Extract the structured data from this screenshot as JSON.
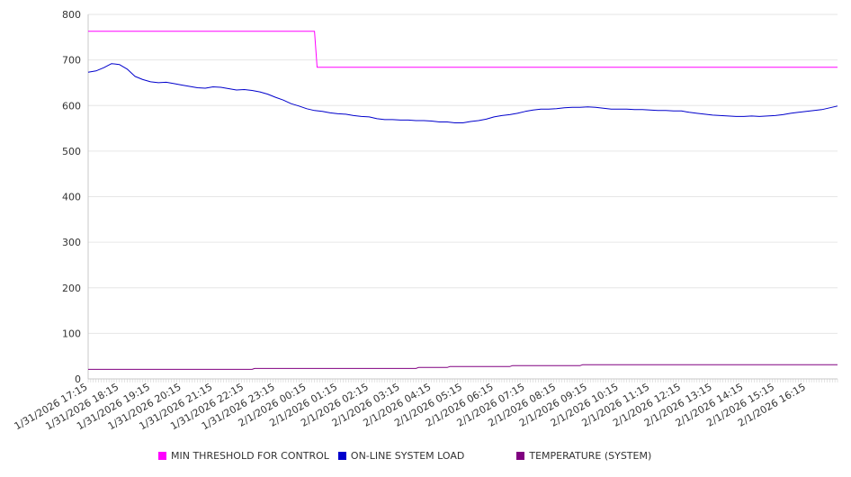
{
  "chart_data": {
    "type": "line",
    "title": "",
    "xlabel": "",
    "ylabel": "",
    "ylim": [
      0,
      800
    ],
    "yticks": [
      0,
      100,
      200,
      300,
      400,
      500,
      600,
      700,
      800
    ],
    "grid": true,
    "legend_position": "bottom",
    "x_range": [
      "1/31/2026 17:15",
      "2/1/2026 17:15"
    ],
    "x_tick_labels": [
      "1/31/2026 17:15",
      "1/31/2026 18:15",
      "1/31/2026 19:15",
      "1/31/2026 20:15",
      "1/31/2026 21:15",
      "1/31/2026 22:15",
      "1/31/2026 23:15",
      "2/1/2026 00:15",
      "2/1/2026 01:15",
      "2/1/2026 02:15",
      "2/1/2026 03:15",
      "2/1/2026 04:15",
      "2/1/2026 05:15",
      "2/1/2026 06:15",
      "2/1/2026 07:15",
      "2/1/2026 08:15",
      "2/1/2026 09:15",
      "2/1/2026 10:15",
      "2/1/2026 11:15",
      "2/1/2026 12:15",
      "2/1/2026 13:15",
      "2/1/2026 14:15",
      "2/1/2026 15:15",
      "2/1/2026 16:15"
    ],
    "series": [
      {
        "name": "MIN THRESHOLD FOR CONTROL",
        "color": "#ff00ff",
        "points": [
          [
            "1/31/2026 17:15",
            763
          ],
          [
            "2/1/2026 00:30",
            763
          ],
          [
            "2/1/2026 00:35",
            684
          ],
          [
            "2/1/2026 17:15",
            684
          ]
        ]
      },
      {
        "name": "ON-LINE SYSTEM LOAD",
        "color": "#0000cc",
        "points": [
          [
            "1/31/2026 17:15",
            673
          ],
          [
            "1/31/2026 17:30",
            676
          ],
          [
            "1/31/2026 17:45",
            683
          ],
          [
            "1/31/2026 18:00",
            692
          ],
          [
            "1/31/2026 18:15",
            690
          ],
          [
            "1/31/2026 18:30",
            680
          ],
          [
            "1/31/2026 18:45",
            664
          ],
          [
            "1/31/2026 19:00",
            657
          ],
          [
            "1/31/2026 19:15",
            652
          ],
          [
            "1/31/2026 19:30",
            650
          ],
          [
            "1/31/2026 19:45",
            651
          ],
          [
            "1/31/2026 20:00",
            648
          ],
          [
            "1/31/2026 20:15",
            645
          ],
          [
            "1/31/2026 20:30",
            642
          ],
          [
            "1/31/2026 20:45",
            639
          ],
          [
            "1/31/2026 21:00",
            638
          ],
          [
            "1/31/2026 21:15",
            641
          ],
          [
            "1/31/2026 21:30",
            640
          ],
          [
            "1/31/2026 21:45",
            637
          ],
          [
            "1/31/2026 22:00",
            634
          ],
          [
            "1/31/2026 22:15",
            635
          ],
          [
            "1/31/2026 22:30",
            633
          ],
          [
            "1/31/2026 22:45",
            630
          ],
          [
            "1/31/2026 23:00",
            625
          ],
          [
            "1/31/2026 23:15",
            618
          ],
          [
            "1/31/2026 23:30",
            612
          ],
          [
            "1/31/2026 23:45",
            604
          ],
          [
            "2/1/2026 00:00",
            599
          ],
          [
            "2/1/2026 00:15",
            593
          ],
          [
            "2/1/2026 00:30",
            589
          ],
          [
            "2/1/2026 00:45",
            587
          ],
          [
            "2/1/2026 01:00",
            584
          ],
          [
            "2/1/2026 01:15",
            582
          ],
          [
            "2/1/2026 01:30",
            581
          ],
          [
            "2/1/2026 01:45",
            578
          ],
          [
            "2/1/2026 02:00",
            576
          ],
          [
            "2/1/2026 02:15",
            575
          ],
          [
            "2/1/2026 02:30",
            571
          ],
          [
            "2/1/2026 02:45",
            569
          ],
          [
            "2/1/2026 03:00",
            569
          ],
          [
            "2/1/2026 03:15",
            568
          ],
          [
            "2/1/2026 03:30",
            568
          ],
          [
            "2/1/2026 03:45",
            567
          ],
          [
            "2/1/2026 04:00",
            567
          ],
          [
            "2/1/2026 04:15",
            566
          ],
          [
            "2/1/2026 04:30",
            564
          ],
          [
            "2/1/2026 04:45",
            564
          ],
          [
            "2/1/2026 05:00",
            562
          ],
          [
            "2/1/2026 05:15",
            562
          ],
          [
            "2/1/2026 05:30",
            565
          ],
          [
            "2/1/2026 05:45",
            567
          ],
          [
            "2/1/2026 06:00",
            570
          ],
          [
            "2/1/2026 06:15",
            575
          ],
          [
            "2/1/2026 06:30",
            578
          ],
          [
            "2/1/2026 06:45",
            580
          ],
          [
            "2/1/2026 07:00",
            583
          ],
          [
            "2/1/2026 07:15",
            587
          ],
          [
            "2/1/2026 07:30",
            590
          ],
          [
            "2/1/2026 07:45",
            592
          ],
          [
            "2/1/2026 08:00",
            592
          ],
          [
            "2/1/2026 08:15",
            593
          ],
          [
            "2/1/2026 08:30",
            595
          ],
          [
            "2/1/2026 08:45",
            596
          ],
          [
            "2/1/2026 09:00",
            596
          ],
          [
            "2/1/2026 09:15",
            597
          ],
          [
            "2/1/2026 09:30",
            596
          ],
          [
            "2/1/2026 09:45",
            594
          ],
          [
            "2/1/2026 10:00",
            592
          ],
          [
            "2/1/2026 10:15",
            592
          ],
          [
            "2/1/2026 10:30",
            592
          ],
          [
            "2/1/2026 10:45",
            591
          ],
          [
            "2/1/2026 11:00",
            591
          ],
          [
            "2/1/2026 11:15",
            590
          ],
          [
            "2/1/2026 11:30",
            589
          ],
          [
            "2/1/2026 11:45",
            589
          ],
          [
            "2/1/2026 12:00",
            588
          ],
          [
            "2/1/2026 12:15",
            588
          ],
          [
            "2/1/2026 12:30",
            585
          ],
          [
            "2/1/2026 12:45",
            583
          ],
          [
            "2/1/2026 13:00",
            581
          ],
          [
            "2/1/2026 13:15",
            579
          ],
          [
            "2/1/2026 13:30",
            578
          ],
          [
            "2/1/2026 13:45",
            577
          ],
          [
            "2/1/2026 14:00",
            576
          ],
          [
            "2/1/2026 14:15",
            576
          ],
          [
            "2/1/2026 14:30",
            577
          ],
          [
            "2/1/2026 14:45",
            576
          ],
          [
            "2/1/2026 15:00",
            577
          ],
          [
            "2/1/2026 15:15",
            578
          ],
          [
            "2/1/2026 15:30",
            580
          ],
          [
            "2/1/2026 15:45",
            583
          ],
          [
            "2/1/2026 16:00",
            585
          ],
          [
            "2/1/2026 16:15",
            587
          ],
          [
            "2/1/2026 16:30",
            589
          ],
          [
            "2/1/2026 16:45",
            591
          ],
          [
            "2/1/2026 17:00",
            595
          ],
          [
            "2/1/2026 17:15",
            599
          ]
        ]
      },
      {
        "name": "TEMPERATURE (SYSTEM)",
        "color": "#800080",
        "points": [
          [
            "1/31/2026 17:15",
            21
          ],
          [
            "1/31/2026 22:30",
            21
          ],
          [
            "1/31/2026 22:35",
            23
          ],
          [
            "2/1/2026 03:45",
            23
          ],
          [
            "2/1/2026 03:50",
            25
          ],
          [
            "2/1/2026 04:45",
            25
          ],
          [
            "2/1/2026 04:50",
            27
          ],
          [
            "2/1/2026 06:45",
            27
          ],
          [
            "2/1/2026 06:50",
            29
          ],
          [
            "2/1/2026 09:00",
            29
          ],
          [
            "2/1/2026 09:05",
            31
          ],
          [
            "2/1/2026 17:15",
            31
          ]
        ]
      }
    ]
  }
}
